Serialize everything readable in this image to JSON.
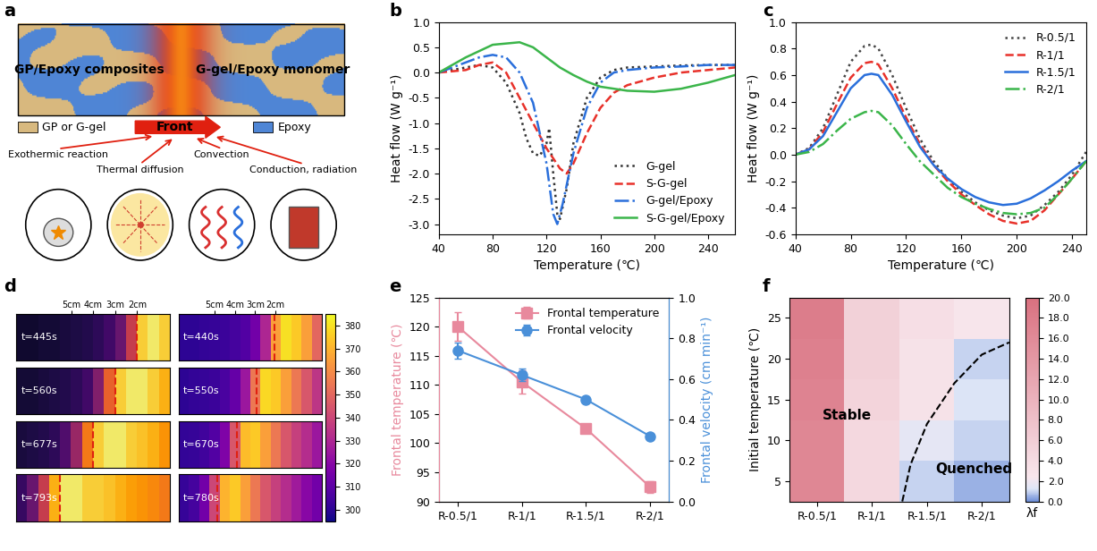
{
  "panel_labels": [
    "a",
    "b",
    "c",
    "d",
    "e",
    "f"
  ],
  "diagram": {
    "regions": [
      "GP/Epoxy composites",
      "G-gel/Epoxy monomer"
    ],
    "front": "Front",
    "legend": [
      {
        "label": "GP or G-gel",
        "color": "#d8b97f"
      },
      {
        "label": "Epoxy",
        "color": "#4f86d6"
      }
    ],
    "mechanisms": [
      "Exothermic reaction",
      "Thermal diffusion",
      "Convection",
      "Conduction, radiation"
    ]
  },
  "chart_data": [
    {
      "type": "line",
      "xlabel": "Temperature (℃)",
      "ylabel": "Heat flow (W g⁻¹)",
      "xlim": [
        40,
        260
      ],
      "ylim": [
        -3.2,
        1.0
      ],
      "xticks": [
        40,
        80,
        120,
        160,
        200,
        240
      ],
      "yticks": [
        -3.0,
        -2.5,
        -2.0,
        -1.5,
        -1.0,
        -0.5,
        0.0,
        0.5,
        1.0
      ],
      "legend": "lower right",
      "series": [
        {
          "name": "G-gel",
          "color": "#333333",
          "line_style": "dotted",
          "x": [
            40,
            50,
            60,
            70,
            80,
            90,
            100,
            105,
            110,
            115,
            120,
            122,
            125,
            128,
            130,
            135,
            140,
            150,
            160,
            170,
            180,
            200,
            220,
            240,
            260
          ],
          "values": [
            0,
            0.05,
            0.1,
            0.15,
            0.1,
            -0.2,
            -0.8,
            -1.3,
            -1.6,
            -1.65,
            -1.4,
            -1.1,
            -2.0,
            -2.8,
            -2.9,
            -2.3,
            -1.4,
            -0.5,
            -0.1,
            0.05,
            0.1,
            0.12,
            0.14,
            0.15,
            0.15
          ]
        },
        {
          "name": "S-G-gel",
          "color": "#e8312a",
          "line_style": "dashed",
          "x": [
            40,
            60,
            70,
            80,
            90,
            100,
            110,
            120,
            130,
            135,
            140,
            150,
            160,
            170,
            180,
            200,
            220,
            240,
            260
          ],
          "values": [
            0,
            0.05,
            0.15,
            0.2,
            0,
            -0.5,
            -1.0,
            -1.5,
            -1.9,
            -2.0,
            -1.8,
            -1.2,
            -0.7,
            -0.4,
            -0.25,
            -0.1,
            0,
            0.05,
            0.1
          ]
        },
        {
          "name": "G-gel/Epoxy",
          "color": "#2a6fdb",
          "line_style": "dashdot",
          "x": [
            40,
            60,
            70,
            80,
            90,
            100,
            110,
            120,
            125,
            128,
            132,
            140,
            150,
            160,
            170,
            180,
            200,
            220,
            240,
            260
          ],
          "values": [
            0,
            0.2,
            0.3,
            0.35,
            0.3,
            0,
            -0.6,
            -1.8,
            -2.8,
            -3.0,
            -2.6,
            -1.6,
            -0.7,
            -0.2,
            0,
            0.05,
            0.1,
            0.12,
            0.15,
            0.15
          ]
        },
        {
          "name": "S-G-gel/Epoxy",
          "color": "#3bb54a",
          "line_style": "solid",
          "x": [
            40,
            60,
            80,
            100,
            110,
            120,
            130,
            140,
            150,
            160,
            180,
            200,
            220,
            240,
            260
          ],
          "values": [
            0,
            0.3,
            0.55,
            0.6,
            0.5,
            0.3,
            0.1,
            -0.05,
            -0.18,
            -0.28,
            -0.36,
            -0.38,
            -0.32,
            -0.2,
            -0.05
          ]
        }
      ]
    },
    {
      "type": "line",
      "xlabel": "Temperature (℃)",
      "ylabel": "Heat flow (W g⁻¹)",
      "xlim": [
        40,
        250
      ],
      "ylim": [
        -0.6,
        1.0
      ],
      "xticks": [
        40,
        80,
        120,
        160,
        200,
        240
      ],
      "yticks": [
        -0.6,
        -0.4,
        -0.2,
        0.0,
        0.2,
        0.4,
        0.6,
        0.8,
        1.0
      ],
      "legend": "upper right",
      "x": [
        40,
        50,
        60,
        70,
        80,
        90,
        95,
        100,
        110,
        120,
        130,
        140,
        150,
        160,
        170,
        180,
        190,
        200,
        210,
        220,
        230,
        240,
        250
      ],
      "series": [
        {
          "name": "R-0.5/1",
          "color": "#444444",
          "line_style": "dotted",
          "values": [
            0,
            0.05,
            0.2,
            0.45,
            0.7,
            0.82,
            0.83,
            0.8,
            0.6,
            0.35,
            0.12,
            -0.05,
            -0.18,
            -0.28,
            -0.36,
            -0.42,
            -0.46,
            -0.48,
            -0.46,
            -0.38,
            -0.28,
            -0.15,
            0.02
          ]
        },
        {
          "name": "R-1/1",
          "color": "#e8312a",
          "line_style": "dashed",
          "values": [
            0,
            0.04,
            0.17,
            0.38,
            0.58,
            0.69,
            0.7,
            0.68,
            0.5,
            0.28,
            0.08,
            -0.08,
            -0.2,
            -0.3,
            -0.38,
            -0.45,
            -0.5,
            -0.52,
            -0.5,
            -0.42,
            -0.3,
            -0.18,
            -0.05
          ]
        },
        {
          "name": "R-1.5/1",
          "color": "#2a6fdb",
          "line_style": "solid",
          "values": [
            0,
            0.04,
            0.14,
            0.32,
            0.5,
            0.6,
            0.61,
            0.6,
            0.45,
            0.25,
            0.06,
            -0.08,
            -0.18,
            -0.26,
            -0.32,
            -0.36,
            -0.38,
            -0.37,
            -0.33,
            -0.27,
            -0.2,
            -0.12,
            -0.05
          ]
        },
        {
          "name": "R-2/1",
          "color": "#3bb54a",
          "line_style": "dashdot",
          "values": [
            0,
            0.02,
            0.08,
            0.18,
            0.27,
            0.32,
            0.33,
            0.32,
            0.22,
            0.08,
            -0.05,
            -0.15,
            -0.25,
            -0.32,
            -0.37,
            -0.41,
            -0.44,
            -0.45,
            -0.44,
            -0.4,
            -0.3,
            -0.18,
            -0.05
          ]
        }
      ]
    },
    {
      "type": "thermal_images",
      "panels": [
        {
          "color": "inferno",
          "value_range": [
            25,
            110
          ],
          "xticks": [
            {
              "value": 4.5,
              "label": "5cm"
            },
            {
              "value": 6.5,
              "label": "4cm"
            },
            {
              "value": 8.5,
              "label": "3cm"
            },
            {
              "value": 10.5,
              "label": "2cm"
            }
          ],
          "frames": [
            {
              "label": "t=445s",
              "front": 10.5,
              "values": [
                32,
                32,
                33,
                33,
                34,
                35,
                36,
                38,
                42,
                50,
                70,
                100,
                105,
                100
              ]
            },
            {
              "label": "t=560s",
              "front": 8.5,
              "values": [
                33,
                33,
                34,
                35,
                36,
                38,
                42,
                55,
                80,
                100,
                105,
                105,
                100,
                95
              ]
            },
            {
              "label": "t=677s",
              "front": 6.5,
              "values": [
                34,
                35,
                36,
                38,
                45,
                60,
                85,
                100,
                105,
                105,
                100,
                98,
                95,
                90
              ]
            },
            {
              "label": "t=793s",
              "front": 3.5,
              "values": [
                40,
                50,
                70,
                95,
                105,
                105,
                100,
                100,
                98,
                95,
                92,
                90,
                88,
                85
              ]
            }
          ]
        },
        {
          "color": "plasma",
          "colorbar_range": [
            295,
            385
          ],
          "colorbar_ticks": [
            300,
            310,
            320,
            330,
            340,
            350,
            360,
            370,
            380
          ],
          "xticks": [
            {
              "value": 3.0,
              "label": "5cm"
            },
            {
              "value": 5.0,
              "label": "4cm"
            },
            {
              "value": 7.0,
              "label": "3cm"
            },
            {
              "value": 9.0,
              "label": "2cm"
            }
          ],
          "frames": [
            {
              "label": "t=440s",
              "front": 8.9,
              "values": [
                300,
                300,
                301,
                302,
                303,
                305,
                308,
                315,
                330,
                365,
                380,
                375,
                365,
                350
              ]
            },
            {
              "label": "t=550s",
              "front": 7.1,
              "values": [
                300,
                301,
                302,
                303,
                306,
                312,
                325,
                355,
                378,
                375,
                365,
                355,
                345,
                335
              ]
            },
            {
              "label": "t=670s",
              "front": 5.2,
              "values": [
                301,
                302,
                304,
                308,
                318,
                345,
                372,
                375,
                365,
                355,
                345,
                338,
                332,
                325
              ]
            },
            {
              "label": "t=780s",
              "front": 3.3,
              "values": [
                302,
                305,
                315,
                340,
                370,
                375,
                365,
                355,
                345,
                338,
                332,
                326,
                320,
                315
              ]
            }
          ]
        }
      ]
    },
    {
      "type": "line",
      "categories": [
        "R-0.5/1",
        "R-1/1",
        "R-1.5/1",
        "R-2/1"
      ],
      "ylabel": "Frontal temperature (℃)",
      "y2label": "Frontal velocity (cm min⁻¹)",
      "ylim": [
        90,
        125
      ],
      "yticks": [
        90,
        95,
        100,
        105,
        110,
        115,
        120,
        125
      ],
      "y2lim": [
        0.0,
        1.0
      ],
      "y2ticks": [
        0.0,
        0.2,
        0.4,
        0.6,
        0.8,
        1.0
      ],
      "legend": "upper right",
      "series": [
        {
          "name": "Frontal temperature",
          "color": "#e8899d",
          "marker": "square",
          "values": [
            120,
            110.5,
            102.5,
            92.5
          ],
          "errors": [
            2.5,
            2.0,
            0.5,
            1.0
          ]
        },
        {
          "name": "Frontal velocity",
          "color": "#4a90d9",
          "marker": "circle",
          "axis": "y2",
          "values": [
            0.74,
            0.62,
            0.5,
            0.32
          ],
          "errors": [
            0.04,
            0.03,
            0.0,
            0.01
          ]
        }
      ]
    },
    {
      "type": "heatmap",
      "categories": [
        "R-0.5/1",
        "R-1/1",
        "R-1.5/1",
        "R-2/1"
      ],
      "y": [
        5,
        10,
        15,
        20,
        25
      ],
      "ylabel": "Initial temperature (℃)",
      "ylim": [
        2.5,
        27.5
      ],
      "yticks": [
        5,
        10,
        15,
        20,
        25
      ],
      "values": [
        [
          16.5,
          4.5,
          1.0,
          0.5
        ],
        [
          16.5,
          4.5,
          1.5,
          1.0
        ],
        [
          17.0,
          5.0,
          3.0,
          1.2
        ],
        [
          17.5,
          5.5,
          3.0,
          1.0
        ],
        [
          18.0,
          5.5,
          3.5,
          2.5
        ]
      ],
      "colorbar_label": "λf",
      "colorbar_range": [
        0.0,
        20.0
      ],
      "colorbar_ticks": [
        0.0,
        2.0,
        4.0,
        6.0,
        8.0,
        10.0,
        12.0,
        14.0,
        16.0,
        18.0,
        20.0
      ],
      "annotations": [
        "Stable",
        "Quenched"
      ],
      "boundary": {
        "x": [
          1.55,
          1.7,
          2.0,
          2.5,
          3.0,
          3.5
        ],
        "y": [
          2.5,
          7,
          12,
          17,
          20.5,
          22
        ]
      }
    }
  ]
}
